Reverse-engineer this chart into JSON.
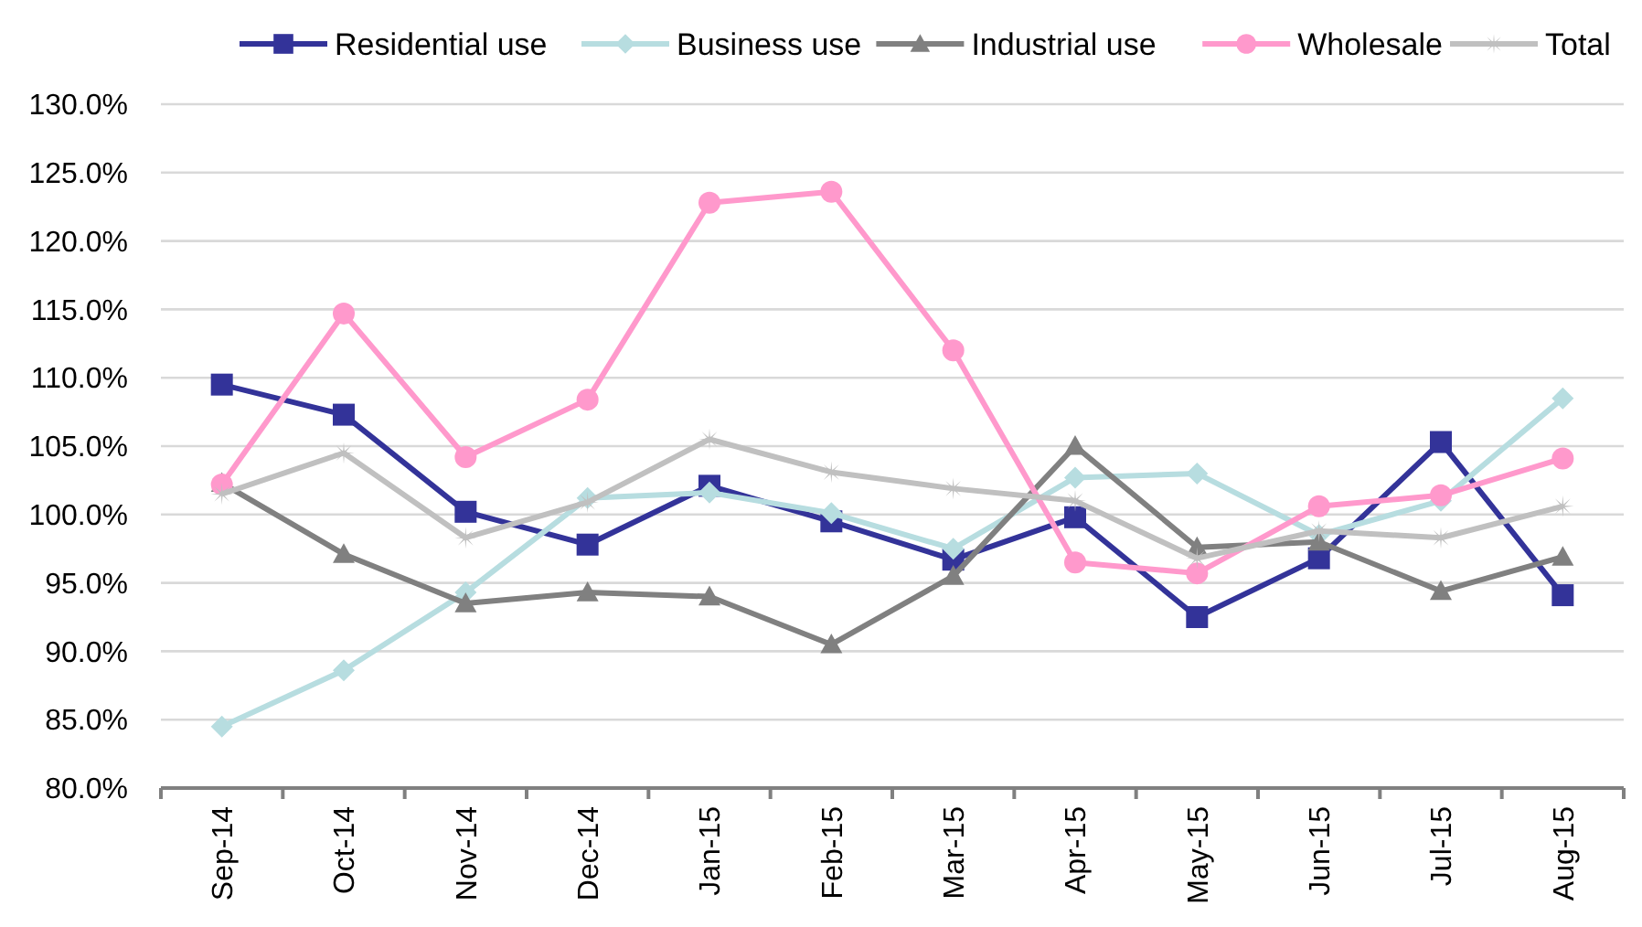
{
  "chart_data": {
    "type": "line",
    "categories": [
      "Sep-14",
      "Oct-14",
      "Nov-14",
      "Dec-14",
      "Jan-15",
      "Feb-15",
      "Mar-15",
      "Apr-15",
      "May-15",
      "Jun-15",
      "Jul-15",
      "Aug-15"
    ],
    "series": [
      {
        "name": "Residential use",
        "color": "#333399",
        "marker": "square",
        "values": [
          109.5,
          107.3,
          100.2,
          97.8,
          102.1,
          99.5,
          96.7,
          99.8,
          92.5,
          96.8,
          105.3,
          94.1
        ]
      },
      {
        "name": "Business use",
        "color": "#b7dde0",
        "marker": "diamond",
        "values": [
          84.5,
          88.6,
          94.3,
          101.2,
          101.6,
          100.1,
          97.5,
          102.7,
          103.0,
          98.5,
          101.0,
          108.5
        ]
      },
      {
        "name": "Industrial use",
        "color": "#808080",
        "marker": "triangle",
        "values": [
          102.3,
          97.1,
          93.5,
          94.3,
          94.0,
          90.5,
          95.5,
          105.0,
          97.6,
          98.0,
          94.4,
          96.9
        ]
      },
      {
        "name": "Wholesale",
        "color": "#ff99cc",
        "marker": "circle",
        "values": [
          102.2,
          114.7,
          104.2,
          108.4,
          122.8,
          123.6,
          112.0,
          96.5,
          95.7,
          100.6,
          101.4,
          104.1
        ]
      },
      {
        "name": "Total",
        "color": "#c0c0c0",
        "marker": "star",
        "values": [
          101.5,
          104.5,
          98.3,
          100.9,
          105.5,
          103.1,
          101.9,
          101.0,
          96.8,
          98.8,
          98.3,
          100.6
        ]
      }
    ],
    "ylim": [
      80,
      130
    ],
    "yticks": [
      {
        "value": 80,
        "label": "80.0%"
      },
      {
        "value": 85,
        "label": "85.0%"
      },
      {
        "value": 90,
        "label": "90.0%"
      },
      {
        "value": 95,
        "label": "95.0%"
      },
      {
        "value": 100,
        "label": "100.0%"
      },
      {
        "value": 105,
        "label": "105.0%"
      },
      {
        "value": 110,
        "label": "110.0%"
      },
      {
        "value": 115,
        "label": "115.0%"
      },
      {
        "value": 120,
        "label": "120.0%"
      },
      {
        "value": 125,
        "label": "125.0%"
      },
      {
        "value": 130,
        "label": "130.0%"
      }
    ],
    "grid": "y",
    "legend": "top",
    "line_style": "solid"
  }
}
